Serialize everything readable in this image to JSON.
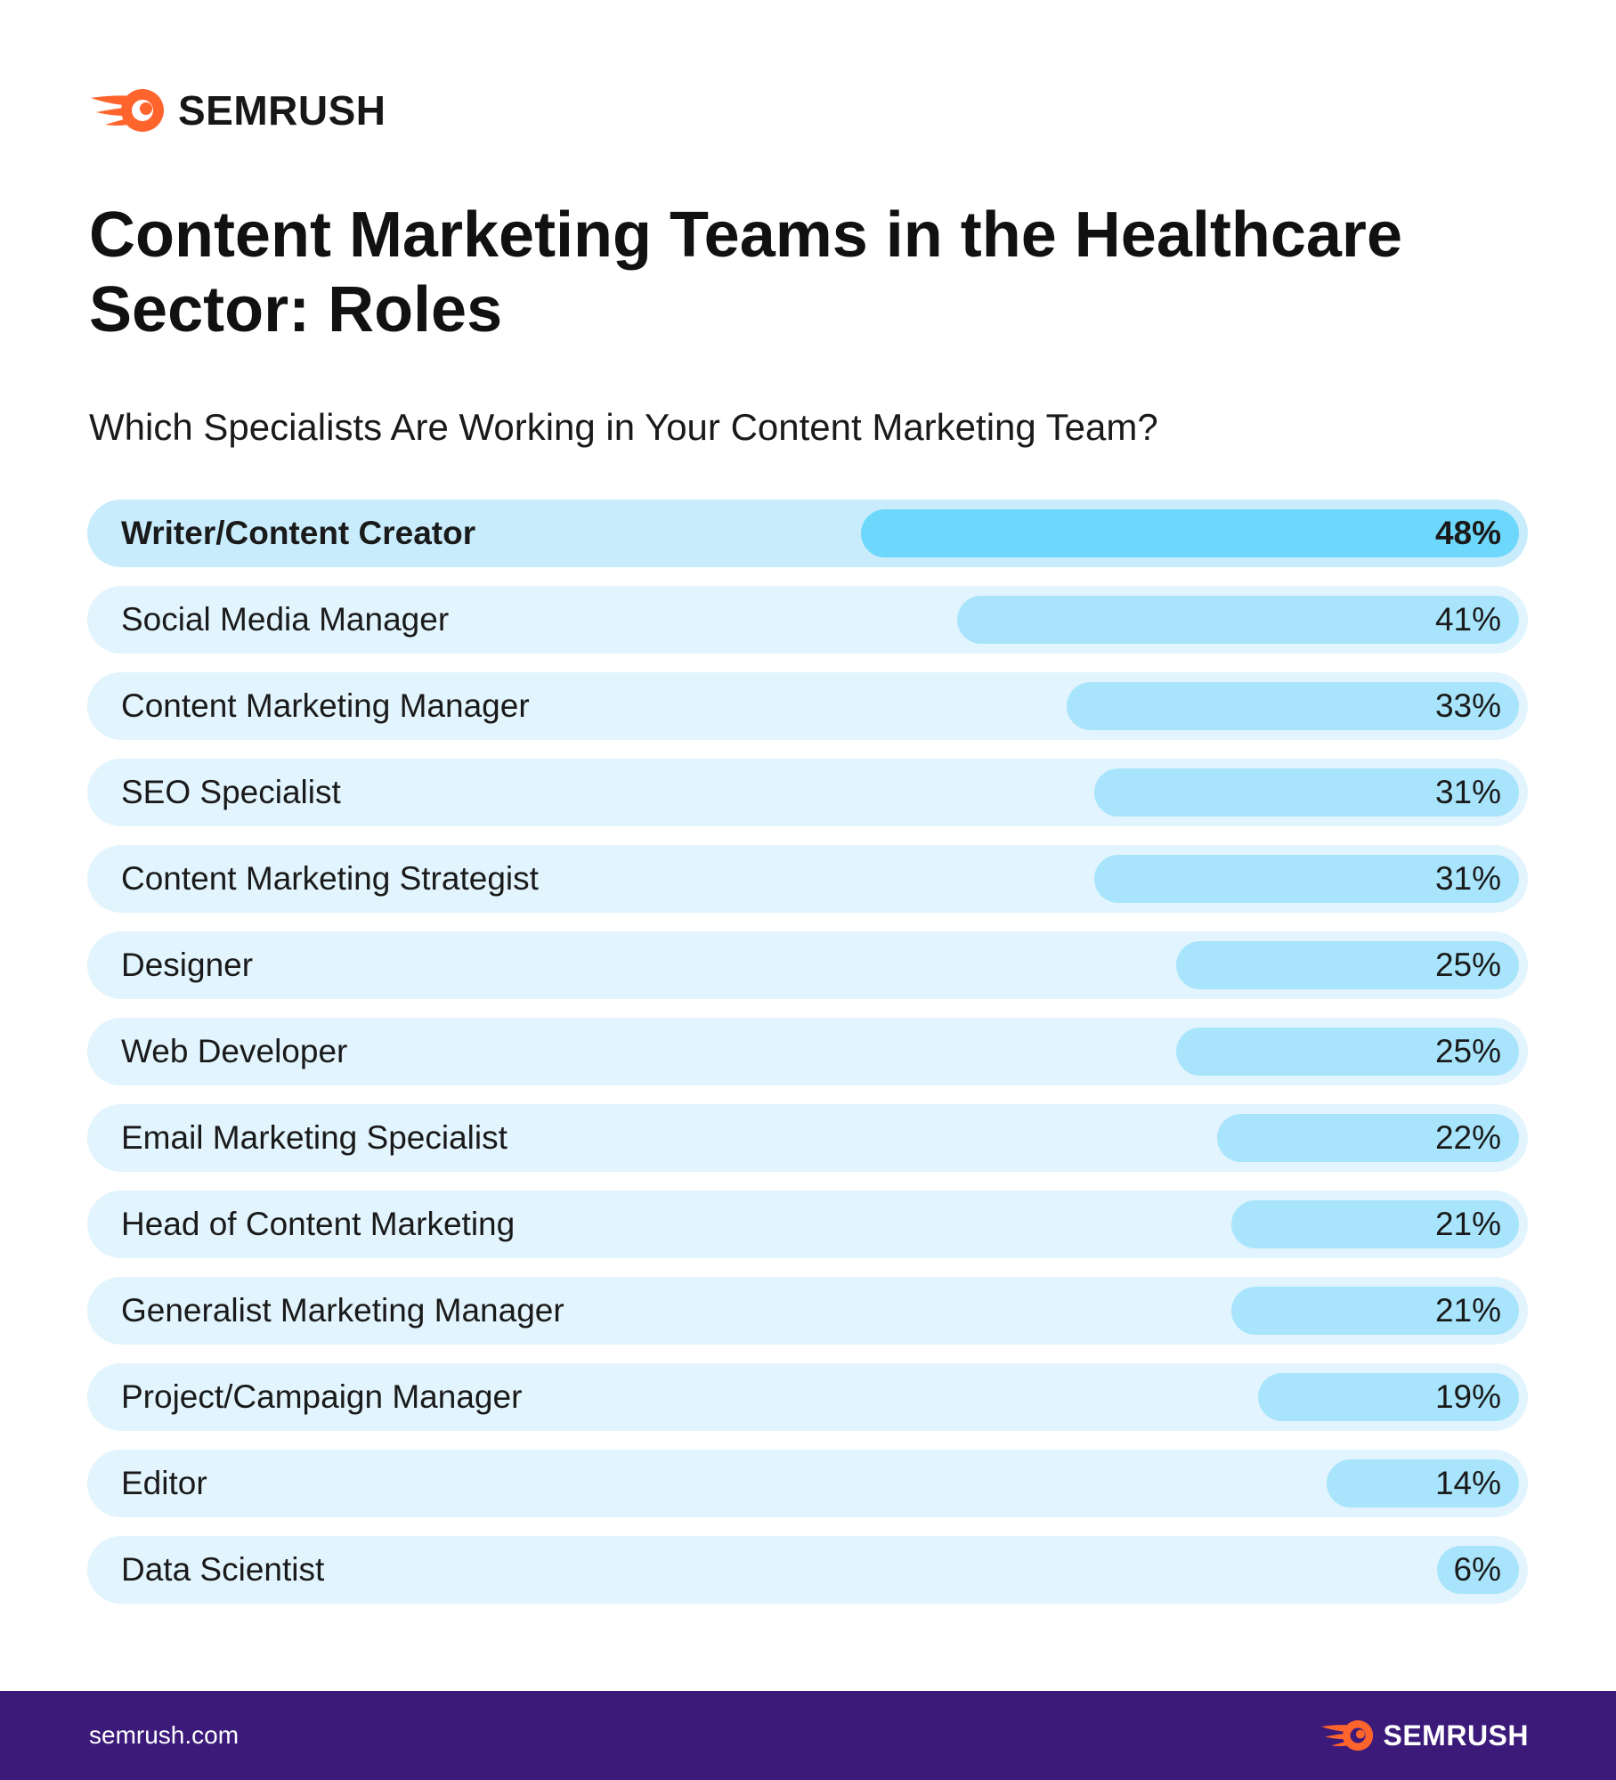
{
  "brand": {
    "name": "SEMRUSH",
    "logo_icon": "semrush-fireball-icon",
    "logo_color": "#ff642d"
  },
  "header": {
    "title": "Content Marketing Teams in the Healthcare Sector: Roles",
    "subtitle": "Which Specialists Are Working in Your Content Marketing Team?"
  },
  "footer": {
    "url": "semrush.com",
    "brand_name": "SEMRUSH"
  },
  "colors": {
    "row_background": "#e2f4fd",
    "row_highlight_background": "#c8ecfc",
    "bar": "#a8e5fc",
    "bar_highlight": "#6dd8fb",
    "footer_background": "#3b1a7a",
    "accent": "#ff642d"
  },
  "chart_data": {
    "type": "bar",
    "orientation": "horizontal",
    "title": "Content Marketing Teams in the Healthcare Sector: Roles",
    "subtitle": "Which Specialists Are Working in Your Content Marketing Team?",
    "unit": "%",
    "xlim": [
      0,
      100
    ],
    "highlighted": 0,
    "categories": [
      "Writer/Content Creator",
      "Social Media Manager",
      "Content Marketing Manager",
      "SEO Specialist",
      "Content Marketing Strategist",
      "Designer",
      "Web Developer",
      "Email Marketing Specialist",
      "Head of Content Marketing",
      "Generalist Marketing Manager",
      "Project/Campaign Manager",
      "Editor",
      "Data Scientist"
    ],
    "values": [
      48,
      41,
      33,
      31,
      31,
      25,
      25,
      22,
      21,
      21,
      19,
      14,
      6
    ],
    "value_labels": [
      "48%",
      "41%",
      "33%",
      "31%",
      "31%",
      "25%",
      "25%",
      "22%",
      "21%",
      "21%",
      "19%",
      "14%",
      "6%"
    ]
  }
}
